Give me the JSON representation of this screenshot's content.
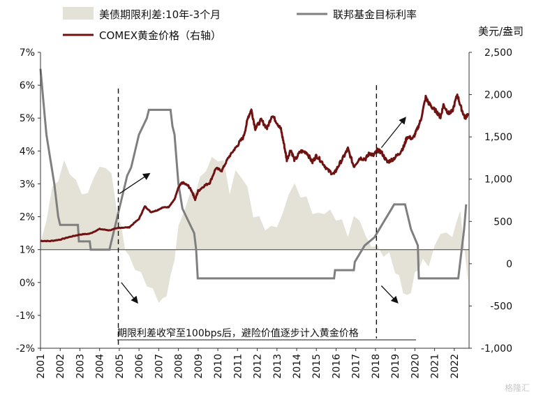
{
  "chart_data": {
    "type": "line",
    "legend": {
      "placement": "top-left",
      "items": [
        {
          "label": "美债期限利差:10年-3个月",
          "kind": "area",
          "color": "#e4e1d6"
        },
        {
          "label": "联邦基金目标利率",
          "kind": "line",
          "color": "#7f7f7f"
        },
        {
          "label": "COMEX黄金价格（右轴）",
          "kind": "line",
          "color": "#6e1212"
        }
      ]
    },
    "right_axis_unit": "美元/盎司",
    "annotation": "期限利差收窄至100bps后，避险价值逐步计入黄金价格",
    "x_axis": {
      "min": 2001,
      "max": 2022.75,
      "ticks": [
        "2001",
        "2002",
        "2003",
        "2004",
        "2005",
        "2006",
        "2007",
        "2008",
        "2009",
        "2010",
        "2011",
        "2012",
        "2013",
        "2014",
        "2015",
        "2016",
        "2017",
        "2018",
        "2019",
        "2020",
        "2021",
        "2022"
      ]
    },
    "left_axis": {
      "min": -2,
      "max": 7,
      "step": 1,
      "ticks": [
        "-2%",
        "-1%",
        "0%",
        "1%",
        "2%",
        "3%",
        "4%",
        "5%",
        "6%",
        "7%"
      ],
      "reference_line": 1
    },
    "right_axis": {
      "min": -1000,
      "max": 2500,
      "step": 500,
      "ticks": [
        "-1,000",
        "-500",
        "0",
        "500",
        "1,000",
        "1,500",
        "2,000",
        "2,500"
      ]
    },
    "markers": [
      {
        "x": 2004.95,
        "ymin": -1.9,
        "ymax": 5.9,
        "style": "dashed"
      },
      {
        "x": 2018.05,
        "ymin": -1.7,
        "ymax": 6.0,
        "style": "dashed"
      }
    ],
    "arrows": [
      {
        "from": [
          2005.0,
          2.7
        ],
        "to": [
          2006.5,
          3.3
        ]
      },
      {
        "from": [
          2005.1,
          0.0
        ],
        "to": [
          2005.9,
          -0.6
        ]
      },
      {
        "from": [
          2018.3,
          4.1
        ],
        "to": [
          2019.5,
          5.0
        ]
      },
      {
        "from": [
          2018.3,
          -0.1
        ],
        "to": [
          2019.1,
          -0.6
        ]
      }
    ],
    "series": [
      {
        "name": "美债期限利差:10年-3个月",
        "axis": "left",
        "style": "area",
        "color": "#e4e1d6",
        "points": [
          [
            2001.0,
            1.2
          ],
          [
            2001.3,
            2.0
          ],
          [
            2001.6,
            2.8
          ],
          [
            2001.9,
            3.2
          ],
          [
            2002.2,
            3.6
          ],
          [
            2002.5,
            3.4
          ],
          [
            2002.8,
            3.0
          ],
          [
            2003.1,
            2.8
          ],
          [
            2003.4,
            2.6
          ],
          [
            2003.7,
            3.3
          ],
          [
            2004.0,
            3.4
          ],
          [
            2004.3,
            3.6
          ],
          [
            2004.6,
            3.2
          ],
          [
            2004.9,
            2.2
          ],
          [
            2005.1,
            1.6
          ],
          [
            2005.3,
            1.1
          ],
          [
            2005.5,
            0.7
          ],
          [
            2005.8,
            0.5
          ],
          [
            2006.1,
            0.2
          ],
          [
            2006.4,
            0.0
          ],
          [
            2006.7,
            -0.3
          ],
          [
            2007.0,
            -0.5
          ],
          [
            2007.2,
            -0.6
          ],
          [
            2007.4,
            -0.3
          ],
          [
            2007.6,
            0.1
          ],
          [
            2007.8,
            0.8
          ],
          [
            2008.0,
            1.6
          ],
          [
            2008.3,
            2.3
          ],
          [
            2008.6,
            2.6
          ],
          [
            2008.9,
            2.9
          ],
          [
            2009.1,
            3.1
          ],
          [
            2009.4,
            3.5
          ],
          [
            2009.7,
            3.7
          ],
          [
            2010.0,
            3.8
          ],
          [
            2010.3,
            3.6
          ],
          [
            2010.6,
            2.8
          ],
          [
            2010.9,
            3.3
          ],
          [
            2011.2,
            3.3
          ],
          [
            2011.5,
            2.8
          ],
          [
            2011.8,
            2.1
          ],
          [
            2012.1,
            1.9
          ],
          [
            2012.4,
            1.7
          ],
          [
            2012.7,
            1.6
          ],
          [
            2013.0,
            1.8
          ],
          [
            2013.3,
            2.0
          ],
          [
            2013.6,
            2.8
          ],
          [
            2013.9,
            2.9
          ],
          [
            2014.2,
            2.7
          ],
          [
            2014.5,
            2.5
          ],
          [
            2014.8,
            2.2
          ],
          [
            2015.1,
            2.0
          ],
          [
            2015.4,
            2.2
          ],
          [
            2015.7,
            2.1
          ],
          [
            2016.0,
            2.0
          ],
          [
            2016.3,
            1.8
          ],
          [
            2016.6,
            1.5
          ],
          [
            2016.9,
            1.9
          ],
          [
            2017.2,
            2.0
          ],
          [
            2017.5,
            1.3
          ],
          [
            2017.8,
            1.2
          ],
          [
            2018.1,
            1.0
          ],
          [
            2018.4,
            0.9
          ],
          [
            2018.7,
            0.8
          ],
          [
            2019.0,
            0.4
          ],
          [
            2019.2,
            0.1
          ],
          [
            2019.4,
            -0.2
          ],
          [
            2019.6,
            -0.5
          ],
          [
            2019.8,
            -0.2
          ],
          [
            2020.0,
            0.2
          ],
          [
            2020.2,
            0.5
          ],
          [
            2020.4,
            0.6
          ],
          [
            2020.7,
            0.6
          ],
          [
            2021.0,
            1.0
          ],
          [
            2021.3,
            1.6
          ],
          [
            2021.6,
            1.4
          ],
          [
            2021.9,
            1.5
          ],
          [
            2022.1,
            1.7
          ],
          [
            2022.3,
            2.3
          ],
          [
            2022.5,
            1.0
          ],
          [
            2022.7,
            0.0
          ]
        ]
      },
      {
        "name": "联邦基金目标利率",
        "axis": "left",
        "style": "line",
        "color": "#7f7f7f",
        "points": [
          [
            2001.0,
            6.5
          ],
          [
            2001.15,
            5.5
          ],
          [
            2001.3,
            4.5
          ],
          [
            2001.5,
            3.75
          ],
          [
            2001.7,
            3.0
          ],
          [
            2001.9,
            2.0
          ],
          [
            2002.0,
            1.75
          ],
          [
            2002.9,
            1.75
          ],
          [
            2002.95,
            1.25
          ],
          [
            2003.5,
            1.25
          ],
          [
            2003.55,
            1.0
          ],
          [
            2004.5,
            1.0
          ],
          [
            2004.6,
            1.25
          ],
          [
            2004.8,
            1.75
          ],
          [
            2005.0,
            2.25
          ],
          [
            2005.2,
            2.75
          ],
          [
            2005.4,
            3.25
          ],
          [
            2005.6,
            3.5
          ],
          [
            2005.8,
            4.0
          ],
          [
            2006.0,
            4.5
          ],
          [
            2006.2,
            4.75
          ],
          [
            2006.4,
            5.0
          ],
          [
            2006.5,
            5.25
          ],
          [
            2007.6,
            5.25
          ],
          [
            2007.7,
            4.75
          ],
          [
            2007.8,
            4.5
          ],
          [
            2008.0,
            3.0
          ],
          [
            2008.2,
            2.25
          ],
          [
            2008.4,
            2.0
          ],
          [
            2008.8,
            1.5
          ],
          [
            2008.9,
            1.0
          ],
          [
            2008.98,
            0.125
          ],
          [
            2015.9,
            0.125
          ],
          [
            2015.95,
            0.375
          ],
          [
            2016.9,
            0.375
          ],
          [
            2016.95,
            0.625
          ],
          [
            2017.2,
            0.875
          ],
          [
            2017.45,
            1.125
          ],
          [
            2017.95,
            1.375
          ],
          [
            2018.2,
            1.625
          ],
          [
            2018.45,
            1.875
          ],
          [
            2018.7,
            2.125
          ],
          [
            2018.95,
            2.375
          ],
          [
            2019.5,
            2.375
          ],
          [
            2019.6,
            2.125
          ],
          [
            2019.7,
            1.875
          ],
          [
            2019.8,
            1.625
          ],
          [
            2020.15,
            1.125
          ],
          [
            2020.2,
            0.125
          ],
          [
            2022.2,
            0.125
          ],
          [
            2022.25,
            0.375
          ],
          [
            2022.35,
            0.875
          ],
          [
            2022.5,
            1.625
          ],
          [
            2022.6,
            2.375
          ]
        ]
      },
      {
        "name": "COMEX黄金价格",
        "axis": "right",
        "style": "line",
        "color": "#6e1212",
        "points": [
          [
            2001.0,
            270
          ],
          [
            2001.5,
            268
          ],
          [
            2002.0,
            285
          ],
          [
            2002.5,
            318
          ],
          [
            2003.0,
            345
          ],
          [
            2003.5,
            355
          ],
          [
            2004.0,
            410
          ],
          [
            2004.5,
            395
          ],
          [
            2005.0,
            425
          ],
          [
            2005.5,
            430
          ],
          [
            2006.0,
            530
          ],
          [
            2006.3,
            680
          ],
          [
            2006.6,
            610
          ],
          [
            2006.9,
            630
          ],
          [
            2007.2,
            665
          ],
          [
            2007.5,
            670
          ],
          [
            2007.8,
            760
          ],
          [
            2008.0,
            900
          ],
          [
            2008.2,
            960
          ],
          [
            2008.5,
            920
          ],
          [
            2008.7,
            850
          ],
          [
            2008.85,
            760
          ],
          [
            2009.0,
            860
          ],
          [
            2009.3,
            920
          ],
          [
            2009.6,
            960
          ],
          [
            2009.9,
            1130
          ],
          [
            2010.2,
            1100
          ],
          [
            2010.5,
            1240
          ],
          [
            2010.8,
            1340
          ],
          [
            2011.0,
            1400
          ],
          [
            2011.3,
            1500
          ],
          [
            2011.55,
            1740
          ],
          [
            2011.7,
            1820
          ],
          [
            2011.9,
            1600
          ],
          [
            2012.2,
            1700
          ],
          [
            2012.5,
            1600
          ],
          [
            2012.75,
            1760
          ],
          [
            2013.0,
            1670
          ],
          [
            2013.2,
            1590
          ],
          [
            2013.35,
            1420
          ],
          [
            2013.5,
            1230
          ],
          [
            2013.7,
            1350
          ],
          [
            2013.9,
            1220
          ],
          [
            2014.2,
            1330
          ],
          [
            2014.5,
            1320
          ],
          [
            2014.8,
            1200
          ],
          [
            2015.0,
            1280
          ],
          [
            2015.3,
            1200
          ],
          [
            2015.6,
            1100
          ],
          [
            2015.9,
            1060
          ],
          [
            2016.1,
            1150
          ],
          [
            2016.4,
            1270
          ],
          [
            2016.6,
            1360
          ],
          [
            2016.9,
            1150
          ],
          [
            2017.2,
            1250
          ],
          [
            2017.5,
            1240
          ],
          [
            2017.7,
            1310
          ],
          [
            2017.9,
            1280
          ],
          [
            2018.1,
            1340
          ],
          [
            2018.3,
            1320
          ],
          [
            2018.6,
            1200
          ],
          [
            2018.9,
            1240
          ],
          [
            2019.2,
            1300
          ],
          [
            2019.45,
            1390
          ],
          [
            2019.6,
            1500
          ],
          [
            2019.9,
            1480
          ],
          [
            2020.1,
            1580
          ],
          [
            2020.3,
            1700
          ],
          [
            2020.55,
            1970
          ],
          [
            2020.7,
            1900
          ],
          [
            2020.9,
            1840
          ],
          [
            2021.1,
            1800
          ],
          [
            2021.3,
            1730
          ],
          [
            2021.45,
            1880
          ],
          [
            2021.7,
            1780
          ],
          [
            2021.9,
            1800
          ],
          [
            2022.15,
            2000
          ],
          [
            2022.35,
            1840
          ],
          [
            2022.55,
            1720
          ],
          [
            2022.7,
            1780
          ]
        ]
      }
    ]
  },
  "watermark": "格隆汇"
}
